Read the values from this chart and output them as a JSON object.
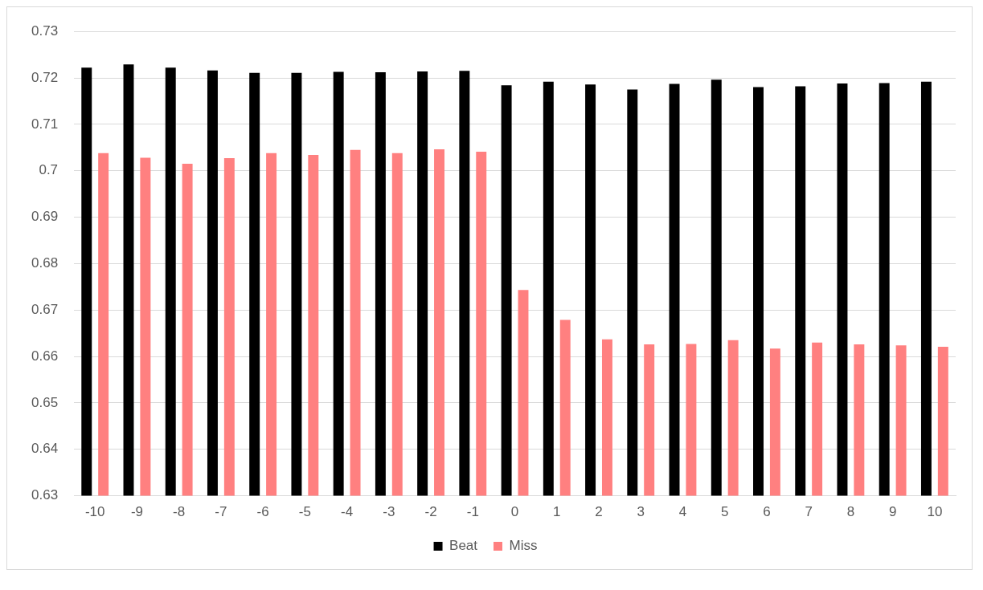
{
  "chart_data": {
    "type": "bar",
    "categories": [
      "-10",
      "-9",
      "-8",
      "-7",
      "-6",
      "-5",
      "-4",
      "-3",
      "-2",
      "-1",
      "0",
      "1",
      "2",
      "3",
      "4",
      "5",
      "6",
      "7",
      "8",
      "9",
      "10"
    ],
    "series": [
      {
        "name": "Beat",
        "color": "#000000",
        "values": [
          0.7222,
          0.7229,
          0.7222,
          0.7216,
          0.7211,
          0.7211,
          0.7213,
          0.7212,
          0.7214,
          0.7215,
          0.7184,
          0.7192,
          0.7186,
          0.7175,
          0.7187,
          0.7196,
          0.718,
          0.7182,
          0.7188,
          0.7189,
          0.7192
        ]
      },
      {
        "name": "Miss",
        "color": "#ff8080",
        "values": [
          0.7038,
          0.7028,
          0.7015,
          0.7027,
          0.7038,
          0.7034,
          0.7045,
          0.7038,
          0.7046,
          0.7041,
          0.6743,
          0.6679,
          0.6637,
          0.6626,
          0.6627,
          0.6635,
          0.6617,
          0.663,
          0.6626,
          0.6624,
          0.6621
        ]
      }
    ],
    "ylim": [
      0.63,
      0.73
    ],
    "yticks": [
      0.63,
      0.64,
      0.65,
      0.66,
      0.67,
      0.68,
      0.69,
      0.7,
      0.71,
      0.72,
      0.73
    ],
    "grid": "y",
    "legend": "bottom"
  }
}
